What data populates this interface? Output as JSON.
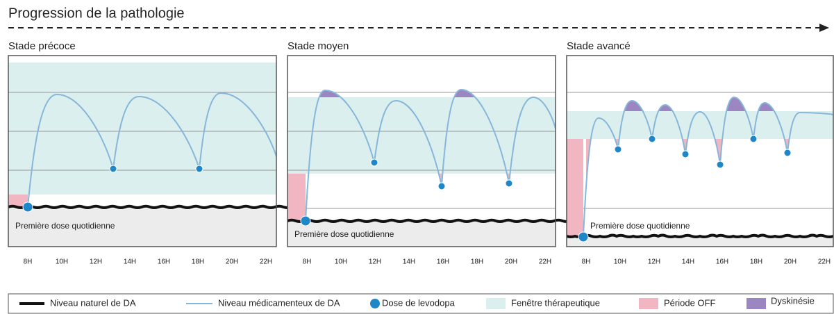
{
  "title": "Progression de la pathologie",
  "panels": [
    {
      "title": "Stade précoce",
      "annotation": "Première dose quotidienne",
      "x_labels": [
        "8H",
        "10H",
        "12H",
        "14H",
        "16H",
        "18H",
        "20H",
        "22H"
      ]
    },
    {
      "title": "Stade moyen",
      "annotation": "Première dose quotidienne",
      "x_labels": [
        "8H",
        "10H",
        "12H",
        "14H",
        "16H",
        "18H",
        "20H",
        "22H"
      ]
    },
    {
      "title": "Stade avancé",
      "annotation": "Première dose quotidienne",
      "x_labels": [
        "8H",
        "10H",
        "12H",
        "14H",
        "16H",
        "18H",
        "20H",
        "22H"
      ]
    }
  ],
  "legend": [
    "Niveau naturel de DA",
    "Niveau médicamenteux de DA",
    "Dose de levodopa",
    "Fenêtre thérapeutique",
    "Période OFF",
    "Dyskinésie"
  ]
}
